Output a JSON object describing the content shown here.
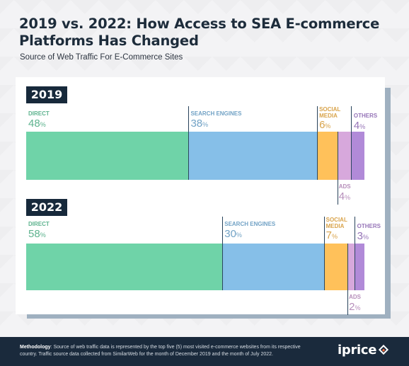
{
  "title": "2019 vs. 2022: How Access to SEA E-commerce Platforms Has Changed",
  "subtitle": "Source of Web Traffic For E-Commerce Sites",
  "colors": {
    "direct": "#6fd3a8",
    "search_engines": "#86bfe8",
    "social_media": "#ffc15a",
    "ads": "#d7a8dc",
    "others": "#b18ad8",
    "dark": "#17293b"
  },
  "chart_data": {
    "type": "bar",
    "orientation": "horizontal-stacked",
    "xlim": [
      0,
      100
    ],
    "categories": [
      "2019",
      "2022"
    ],
    "series": [
      {
        "name": "DIRECT",
        "values": [
          48,
          58
        ],
        "color": "#6fd3a8"
      },
      {
        "name": "SEARCH ENGINES",
        "values": [
          38,
          30
        ],
        "color": "#86bfe8"
      },
      {
        "name": "SOCIAL MEDIA",
        "values": [
          6,
          7
        ],
        "color": "#ffc15a"
      },
      {
        "name": "ADS",
        "values": [
          4,
          2
        ],
        "color": "#d7a8dc"
      },
      {
        "name": "OTHERS",
        "values": [
          4,
          3
        ],
        "color": "#b18ad8"
      }
    ],
    "value_suffix": "%"
  },
  "footer": {
    "methodology_label": "Methodology",
    "methodology_text": ": Source of web traffic data is represented by the top five (5) most visited e-commerce websites from its respective country. Traffic source data collected from SimilarWeb for the month of December 2019 and the month of July 2022.",
    "brand": "iprice"
  }
}
